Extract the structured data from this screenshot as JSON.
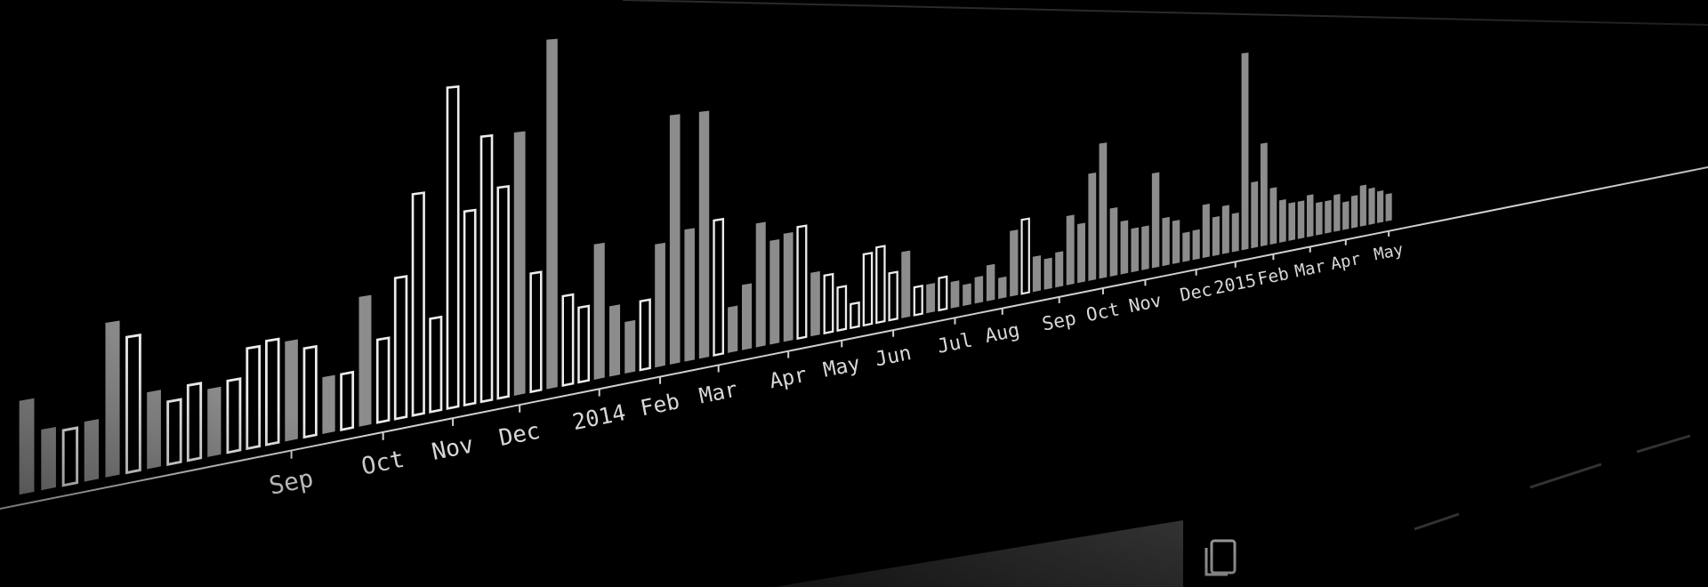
{
  "chart_data": {
    "type": "bar",
    "categories": [
      null,
      null,
      null,
      null,
      null,
      null,
      null,
      null,
      null,
      null,
      null,
      null,
      null,
      "Sep",
      null,
      null,
      null,
      null,
      "Oct",
      null,
      null,
      null,
      "Nov",
      null,
      null,
      null,
      "Dec",
      null,
      null,
      null,
      null,
      "2014",
      null,
      null,
      null,
      "Feb",
      null,
      null,
      null,
      "Mar",
      null,
      null,
      null,
      null,
      "Apr",
      null,
      null,
      null,
      "May",
      null,
      null,
      null,
      "Jun",
      null,
      null,
      null,
      null,
      "Jul",
      null,
      null,
      null,
      "Aug",
      null,
      null,
      null,
      null,
      "Sep",
      null,
      null,
      null,
      "Oct",
      null,
      null,
      null,
      "Nov",
      null,
      null,
      null,
      null,
      "Dec",
      null,
      null,
      null,
      "2015",
      null,
      null,
      null,
      "Feb",
      null,
      null,
      null,
      "Mar",
      null,
      null,
      null,
      "Apr",
      null,
      null,
      null,
      null,
      "May"
    ],
    "values": [
      105,
      68,
      63,
      68,
      178,
      158,
      89,
      74,
      89,
      80,
      86,
      121,
      126,
      121,
      109,
      69,
      69,
      161,
      104,
      178,
      281,
      119,
      412,
      250,
      344,
      275,
      344,
      156,
      462,
      119,
      100,
      181,
      94,
      69,
      94,
      168,
      343,
      182,
      343,
      189,
      63,
      91,
      175,
      147,
      154,
      161,
      91,
      84,
      63,
      35,
      105,
      112,
      70,
      98,
      42,
      42,
      49,
      39,
      31,
      39,
      54,
      31,
      101,
      116,
      54,
      47,
      54,
      109,
      93,
      171,
      217,
      109,
      85,
      70,
      70,
      155,
      78,
      70,
      47,
      48,
      88,
      64,
      80,
      64,
      336,
      112,
      176,
      96,
      72,
      64,
      64,
      72,
      56,
      56,
      64,
      48,
      56,
      72,
      64,
      56,
      48
    ],
    "outlined": [
      false,
      false,
      true,
      false,
      false,
      true,
      false,
      true,
      true,
      false,
      true,
      true,
      true,
      false,
      true,
      false,
      true,
      false,
      true,
      true,
      true,
      true,
      true,
      true,
      true,
      true,
      false,
      true,
      false,
      true,
      true,
      false,
      false,
      false,
      true,
      false,
      false,
      false,
      false,
      true,
      false,
      false,
      false,
      false,
      false,
      true,
      false,
      true,
      true,
      true,
      true,
      true,
      true,
      false,
      true,
      false,
      true,
      false,
      false,
      false,
      false,
      false,
      false,
      true,
      false,
      false,
      false,
      false,
      false,
      false,
      false,
      false,
      false,
      false,
      false,
      false,
      false,
      false,
      false,
      false,
      false,
      false,
      false,
      false,
      false,
      false,
      false,
      false,
      false,
      false,
      false,
      false,
      false,
      false,
      false,
      false,
      false,
      false,
      false,
      false,
      false
    ],
    "color": "#8c8c8c",
    "outline_color": "#ececec",
    "label_color": "#d8d8d8"
  }
}
